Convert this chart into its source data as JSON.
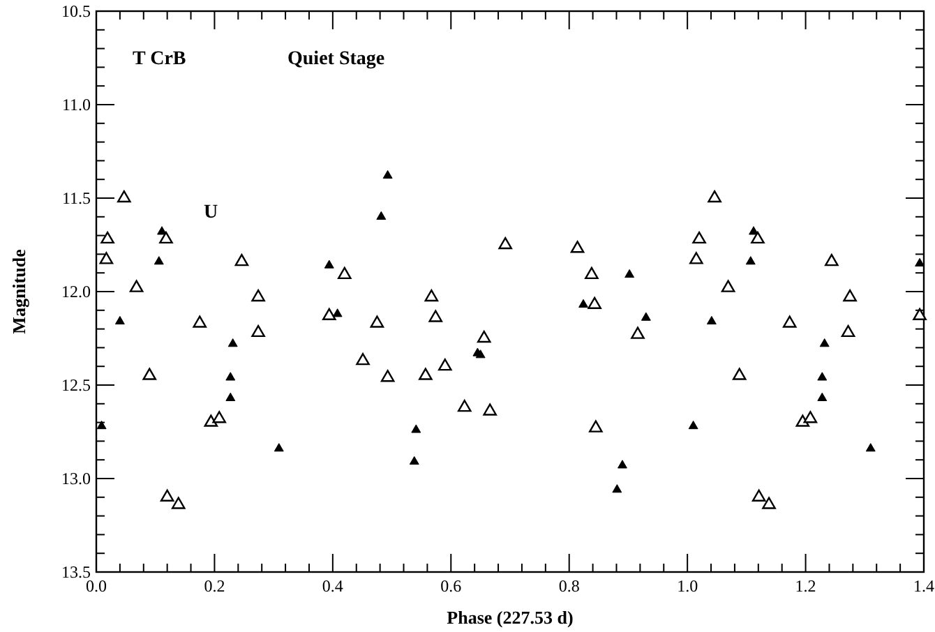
{
  "chart_data": {
    "type": "scatter",
    "title": "T CrB",
    "subtitle": "Quiet Stage",
    "annotations": [
      "U"
    ],
    "xlabel": "Phase (227.53 d)",
    "ylabel": "Magnitude",
    "xlim": [
      0,
      1.4
    ],
    "ylim": [
      13.5,
      10.5
    ],
    "marker": "triangle",
    "grid": false,
    "xticks": [
      {
        "value": 0,
        "label": "0.0"
      },
      {
        "value": 0.04,
        "label": null
      },
      {
        "value": 0.08,
        "label": null
      },
      {
        "value": 0.12,
        "label": null
      },
      {
        "value": 0.16,
        "label": null
      },
      {
        "value": 0.2,
        "label": "0.2"
      },
      {
        "value": 0.24,
        "label": null
      },
      {
        "value": 0.28,
        "label": null
      },
      {
        "value": 0.32,
        "label": null
      },
      {
        "value": 0.36,
        "label": null
      },
      {
        "value": 0.4,
        "label": "0.4"
      },
      {
        "value": 0.44,
        "label": null
      },
      {
        "value": 0.48,
        "label": null
      },
      {
        "value": 0.52,
        "label": null
      },
      {
        "value": 0.56,
        "label": null
      },
      {
        "value": 0.6,
        "label": "0.6"
      },
      {
        "value": 0.64,
        "label": null
      },
      {
        "value": 0.68,
        "label": null
      },
      {
        "value": 0.72,
        "label": null
      },
      {
        "value": 0.76,
        "label": null
      },
      {
        "value": 0.8,
        "label": "0.8"
      },
      {
        "value": 0.84,
        "label": null
      },
      {
        "value": 0.88,
        "label": null
      },
      {
        "value": 0.92,
        "label": null
      },
      {
        "value": 0.96,
        "label": null
      },
      {
        "value": 1,
        "label": "1.0"
      },
      {
        "value": 1.04,
        "label": null
      },
      {
        "value": 1.08,
        "label": null
      },
      {
        "value": 1.12,
        "label": null
      },
      {
        "value": 1.16,
        "label": null
      },
      {
        "value": 1.2,
        "label": "1.2"
      },
      {
        "value": 1.24,
        "label": null
      },
      {
        "value": 1.28,
        "label": null
      },
      {
        "value": 1.32,
        "label": null
      },
      {
        "value": 1.36,
        "label": null
      },
      {
        "value": 1.4,
        "label": "1.4"
      }
    ],
    "yticks": [
      {
        "value": 10.5,
        "label": "10.5"
      },
      {
        "value": 10.6,
        "label": null
      },
      {
        "value": 10.7,
        "label": null
      },
      {
        "value": 10.8,
        "label": null
      },
      {
        "value": 10.9,
        "label": null
      },
      {
        "value": 11,
        "label": "11.0"
      },
      {
        "value": 11.1,
        "label": null
      },
      {
        "value": 11.2,
        "label": null
      },
      {
        "value": 11.3,
        "label": null
      },
      {
        "value": 11.4,
        "label": null
      },
      {
        "value": 11.5,
        "label": "11.5"
      },
      {
        "value": 11.6,
        "label": null
      },
      {
        "value": 11.7,
        "label": null
      },
      {
        "value": 11.8,
        "label": null
      },
      {
        "value": 11.9,
        "label": null
      },
      {
        "value": 12,
        "label": "12.0"
      },
      {
        "value": 12.1,
        "label": null
      },
      {
        "value": 12.2,
        "label": null
      },
      {
        "value": 12.3,
        "label": null
      },
      {
        "value": 12.4,
        "label": null
      },
      {
        "value": 12.5,
        "label": "12.5"
      },
      {
        "value": 12.6,
        "label": null
      },
      {
        "value": 12.7,
        "label": null
      },
      {
        "value": 12.8,
        "label": null
      },
      {
        "value": 12.9,
        "label": null
      },
      {
        "value": 13,
        "label": "13.0"
      },
      {
        "value": 13.1,
        "label": null
      },
      {
        "value": 13.2,
        "label": null
      },
      {
        "value": 13.3,
        "label": null
      },
      {
        "value": 13.4,
        "label": null
      },
      {
        "value": 13.5,
        "label": "13.5"
      }
    ],
    "series": [
      {
        "color": "#000000",
        "x": [
          0.009,
          0.04,
          0.106,
          0.111,
          0.227,
          0.227,
          0.231,
          0.309,
          0.394,
          0.408,
          0.482,
          0.493,
          0.538,
          0.541,
          0.645,
          0.65,
          0.824,
          0.881,
          0.89,
          0.902,
          0.93,
          1.01,
          1.041,
          1.107,
          1.112,
          1.228,
          1.228,
          1.232,
          1.31,
          1.393
        ],
        "values": [
          12.72,
          12.16,
          11.84,
          11.68,
          12.57,
          12.46,
          12.28,
          12.84,
          11.86,
          12.12,
          11.6,
          11.38,
          12.91,
          12.74,
          12.33,
          12.34,
          12.07,
          13.06,
          12.93,
          11.91,
          12.14,
          12.72,
          12.16,
          11.84,
          11.68,
          12.57,
          12.46,
          12.28,
          12.84,
          11.85
        ]
      },
      {
        "color": "#000000",
        "x": [
          0.017,
          0.019,
          0.047,
          0.068,
          0.09,
          0.118,
          0.12,
          0.139,
          0.175,
          0.194,
          0.208,
          0.246,
          0.274,
          0.274,
          0.394,
          0.42,
          0.451,
          0.475,
          0.493,
          0.557,
          0.567,
          0.574,
          0.59,
          0.623,
          0.656,
          0.666,
          0.692,
          0.814,
          0.838,
          0.843,
          0.845,
          0.916,
          1.015,
          1.02,
          1.046,
          1.069,
          1.088,
          1.119,
          1.121,
          1.138,
          1.173,
          1.195,
          1.208,
          1.244,
          1.272,
          1.275,
          1.393
        ],
        "values": [
          11.83,
          11.72,
          11.5,
          11.98,
          12.45,
          11.72,
          13.1,
          13.14,
          12.17,
          12.7,
          12.68,
          11.84,
          12.03,
          12.22,
          12.13,
          11.91,
          12.37,
          12.17,
          12.46,
          12.45,
          12.03,
          12.14,
          12.4,
          12.62,
          12.25,
          12.64,
          11.75,
          11.77,
          11.91,
          12.07,
          12.73,
          12.23,
          11.83,
          11.72,
          11.5,
          11.98,
          12.45,
          11.72,
          13.1,
          13.14,
          12.17,
          12.7,
          12.68,
          11.84,
          12.22,
          12.03,
          12.13
        ]
      }
    ]
  }
}
